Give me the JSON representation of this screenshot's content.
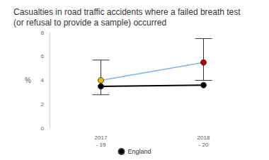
{
  "chart_data": {
    "type": "line",
    "title": "Casualties in road traffic accidents where a failed breath test\n(or refusal to provide a sample) occurred",
    "y_label": "%",
    "categories": [
      "2017\n- 19",
      "2018\n- 20"
    ],
    "series": [
      {
        "color": "#7fb2e5",
        "colors": [
          "#f2b705",
          "#c00000"
        ],
        "values": [
          4.0,
          5.5
        ],
        "lower": [
          2.8,
          4.0
        ],
        "upper": [
          5.7,
          7.5
        ]
      },
      {
        "name": "England",
        "color": "#000000",
        "values": [
          3.5,
          3.6
        ]
      }
    ],
    "ylim": [
      0,
      8
    ],
    "yticks": [
      0,
      2,
      4,
      6,
      8
    ],
    "grid": false,
    "legend": "bottom"
  }
}
